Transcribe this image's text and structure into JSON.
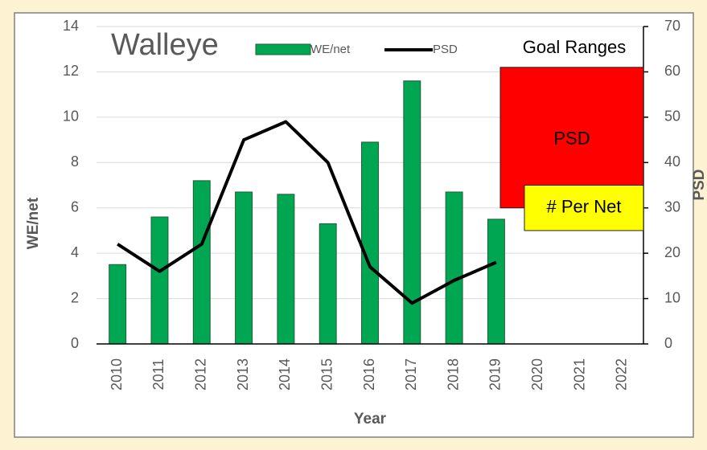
{
  "chart_data": {
    "type": "bar_line",
    "title": "Walleye",
    "x_label": "Year",
    "y_label": "WE/net",
    "y2_label": "PSD",
    "categories": [
      "2010",
      "2011",
      "2012",
      "2013",
      "2014",
      "2015",
      "2016",
      "2017",
      "2018",
      "2019",
      "2020",
      "2021",
      "2022"
    ],
    "series": [
      {
        "name": "WE/net",
        "type": "bar",
        "color": "#00a651",
        "axis": "y",
        "values": [
          3.5,
          5.6,
          7.2,
          6.7,
          6.6,
          5.3,
          8.9,
          11.6,
          6.7,
          5.5,
          null,
          null,
          null
        ]
      },
      {
        "name": "PSD",
        "type": "line",
        "color": "#000000",
        "axis": "y2",
        "values": [
          22,
          16,
          22,
          45,
          49,
          40,
          17,
          9,
          14,
          18,
          null,
          null,
          null
        ]
      }
    ],
    "ylim": [
      0,
      14
    ],
    "yticks": [
      0,
      2,
      4,
      6,
      8,
      10,
      12,
      14
    ],
    "y2lim": [
      0,
      70
    ],
    "y2ticks": [
      0,
      10,
      20,
      30,
      40,
      50,
      60,
      70
    ],
    "grid": true,
    "legend": "top",
    "goal_title": "Goal Ranges",
    "goal_ranges": [
      {
        "label": "PSD",
        "axis": "y2",
        "range": [
          30,
          61
        ],
        "color": "#ff0000"
      },
      {
        "label": "# Per Net",
        "axis": "y",
        "range": [
          5,
          7
        ],
        "color": "#ffff00"
      }
    ]
  }
}
